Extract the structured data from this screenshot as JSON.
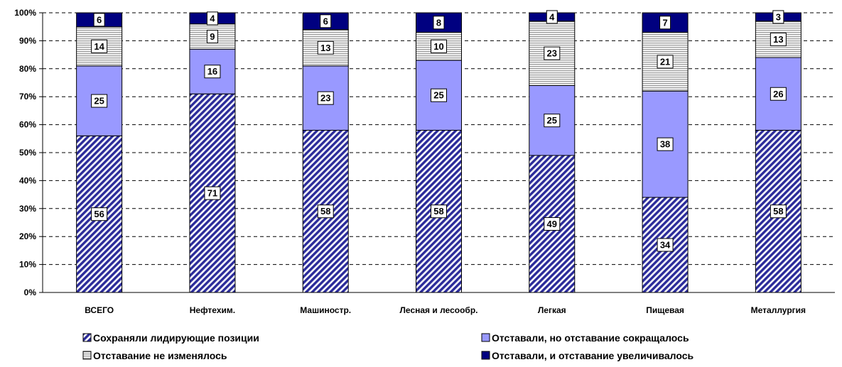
{
  "chart_data": {
    "type": "bar",
    "stacked": true,
    "percent": true,
    "categories": [
      "ВСЕГО",
      "Нефтехим.",
      "Машиностр.",
      "Лесная и лесообр.",
      "Легкая",
      "Пищевая",
      "Металлургия"
    ],
    "series": [
      {
        "name": "Сохраняли лидирующие позиции",
        "values": [
          56,
          71,
          58,
          58,
          49,
          34,
          58
        ],
        "color": "#2b2b9a",
        "pattern": "diagonal-stripes"
      },
      {
        "name": "Отставали, но отставание сокращалось",
        "values": [
          25,
          16,
          23,
          25,
          25,
          38,
          26
        ],
        "color": "#9999ff",
        "pattern": "solid"
      },
      {
        "name": "Отставание не изменялось",
        "values": [
          14,
          9,
          13,
          10,
          23,
          21,
          13
        ],
        "color": "#c8c8c8",
        "pattern": "horizontal-lines"
      },
      {
        "name": "Отставали, и отставание увеличивалось",
        "values": [
          6,
          4,
          6,
          8,
          4,
          7,
          3
        ],
        "color": "#000080",
        "pattern": "solid"
      }
    ],
    "yticks": [
      "0%",
      "10%",
      "20%",
      "30%",
      "40%",
      "50%",
      "60%",
      "70%",
      "80%",
      "90%",
      "100%"
    ],
    "ylim": [
      0,
      100
    ],
    "grid": "horizontal-dashed",
    "legend": "bottom",
    "title": "",
    "xlabel": "",
    "ylabel": ""
  }
}
